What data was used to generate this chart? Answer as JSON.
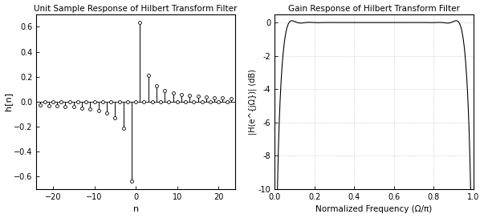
{
  "title1": "Unit Sample Response of Hilbert Transform Filter",
  "title2": "Gain Response of Hilbert Transform Filter",
  "xlabel1": "n",
  "ylabel1": "h[n]",
  "xlabel2": "Normalized Frequency (Ω/π)",
  "ylabel2": "|H(e^{jΩ})| (dB)",
  "ylim1": [
    -0.7,
    0.7
  ],
  "yticks1": [
    -0.6,
    -0.4,
    -0.2,
    0.0,
    0.2,
    0.4,
    0.6
  ],
  "xticks1": [
    -20,
    -10,
    0,
    10,
    20
  ],
  "ylim2": [
    -10,
    0.5
  ],
  "yticks2": [
    0,
    -2,
    -4,
    -6,
    -8,
    -10
  ],
  "xticks2": [
    0,
    0.2,
    0.4,
    0.6,
    0.8,
    1.0
  ],
  "bg_color": "#ffffff",
  "line_color": "#000000",
  "grid_color": "#b0b0b0"
}
